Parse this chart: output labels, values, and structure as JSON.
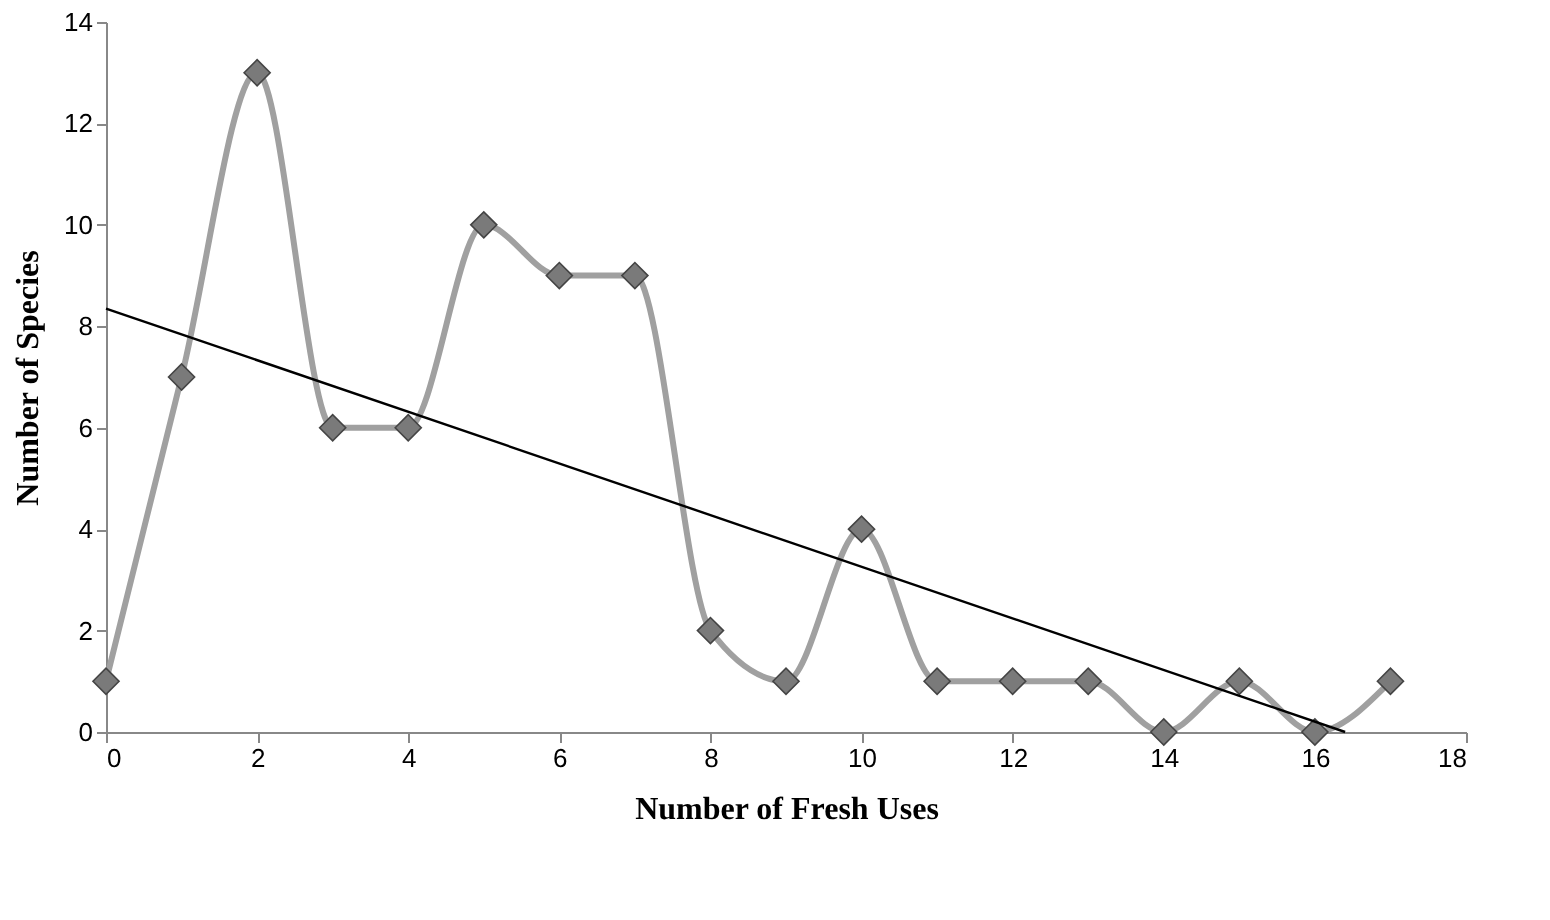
{
  "chart_data": {
    "type": "line",
    "xlabel": "Number of Fresh Uses",
    "ylabel": "Number of Species",
    "x": [
      0,
      1,
      2,
      3,
      4,
      5,
      6,
      7,
      8,
      9,
      10,
      11,
      12,
      13,
      14,
      15,
      16,
      17
    ],
    "series": [
      {
        "color": "#a0a0a0",
        "marker": "diamond",
        "values": [
          1,
          7,
          13,
          6,
          6,
          10,
          9,
          9,
          2,
          1,
          4,
          1,
          1,
          1,
          0,
          1,
          0,
          1
        ]
      },
      {
        "type": "line",
        "color": "#000000",
        "marker": "none",
        "x": [
          0,
          16.4
        ],
        "values": [
          8.35,
          0
        ]
      }
    ],
    "xlim": [
      0,
      18
    ],
    "xticks": [
      0,
      2,
      4,
      6,
      8,
      10,
      12,
      14,
      16,
      18
    ],
    "ylim": [
      0,
      14
    ],
    "yticks": [
      0,
      2,
      4,
      6,
      8,
      10,
      12,
      14
    ],
    "grid": false,
    "legend": false
  }
}
